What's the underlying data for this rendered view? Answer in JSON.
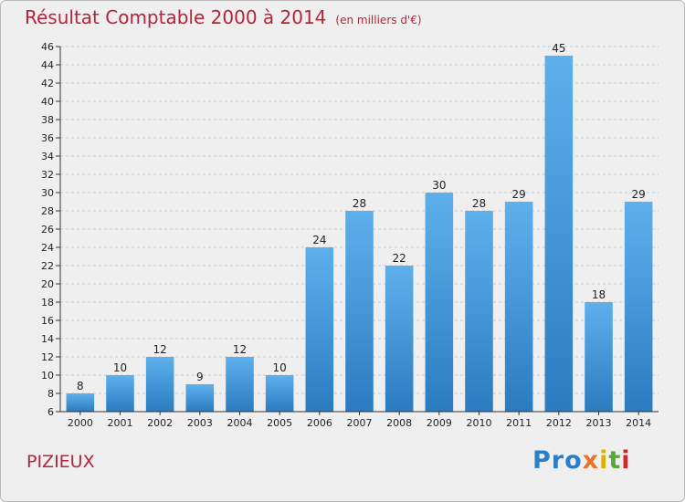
{
  "chart_data": {
    "type": "bar",
    "title": "Résultat Comptable 2000 à 2014",
    "subtitle": "(en milliers d'€)",
    "categories": [
      "2000",
      "2001",
      "2002",
      "2003",
      "2004",
      "2005",
      "2006",
      "2007",
      "2008",
      "2009",
      "2010",
      "2011",
      "2012",
      "2013",
      "2014"
    ],
    "values": [
      8,
      10,
      12,
      9,
      12,
      10,
      24,
      28,
      22,
      30,
      28,
      29,
      45,
      18,
      29
    ],
    "ylim": [
      6,
      46
    ],
    "yticks": [
      6,
      8,
      10,
      12,
      14,
      16,
      18,
      20,
      22,
      24,
      26,
      28,
      30,
      32,
      34,
      36,
      38,
      40,
      42,
      44,
      46
    ],
    "xlabel": "",
    "ylabel": "",
    "grid": "horizontal dashed",
    "bar_color_top": "#5eb0ec",
    "bar_color_bottom": "#2a7cc1"
  },
  "location": "PIZIEUX",
  "logo": {
    "p1": "Pro",
    "p2": "x",
    "p3": "i",
    "p4": "t",
    "p5": "i"
  },
  "colors": {
    "title": "#b5243a",
    "background": "#efefef"
  }
}
